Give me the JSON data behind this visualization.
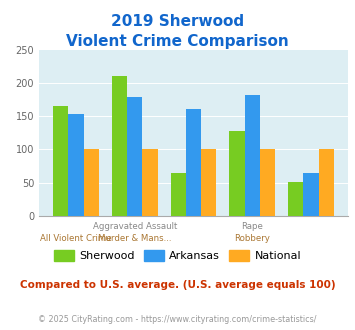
{
  "title_line1": "2019 Sherwood",
  "title_line2": "Violent Crime Comparison",
  "sherwood": [
    165,
    210,
    65,
    128,
    51
  ],
  "arkansas": [
    153,
    179,
    161,
    182,
    65
  ],
  "national": [
    101,
    101,
    101,
    101,
    101
  ],
  "bar_color_sherwood": "#77cc22",
  "bar_color_arkansas": "#3399ee",
  "bar_color_national": "#ffaa22",
  "ylim": [
    0,
    250
  ],
  "yticks": [
    0,
    50,
    100,
    150,
    200,
    250
  ],
  "plot_area_color": "#ddeef3",
  "title_color": "#1166cc",
  "note_text": "Compared to U.S. average. (U.S. average equals 100)",
  "note_color": "#cc3300",
  "footer_text": "© 2025 CityRating.com - https://www.cityrating.com/crime-statistics/",
  "footer_color": "#999999",
  "label_top": [
    "",
    "Aggravated Assault",
    "",
    "Rape",
    ""
  ],
  "label_bottom": [
    "All Violent Crime",
    "Murder & Mans...",
    "",
    "Robbery",
    ""
  ],
  "label_top_color": "#888888",
  "label_bottom_color": "#aa7733"
}
